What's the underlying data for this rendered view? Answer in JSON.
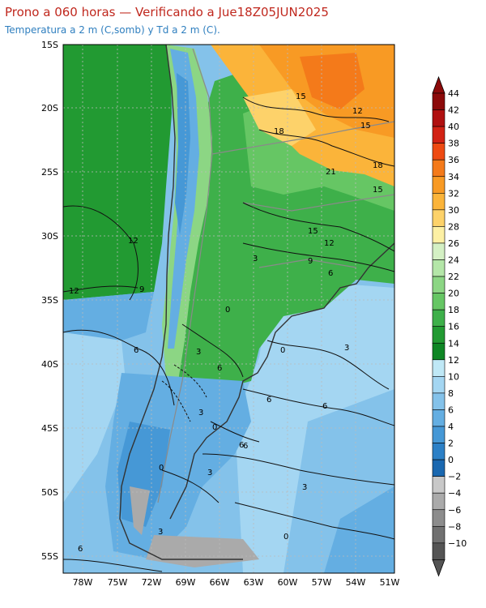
{
  "titles": {
    "main": "Prono a 060 horas — Verificando a Jue18Z05JUN2025",
    "sub": "Temperatura a 2 m (C,somb) y Td a 2 m (C)."
  },
  "axes": {
    "lat_labels": [
      "15S",
      "20S",
      "25S",
      "30S",
      "35S",
      "40S",
      "45S",
      "50S",
      "55S"
    ],
    "lon_labels": [
      "78W",
      "75W",
      "72W",
      "69W",
      "66W",
      "63W",
      "60W",
      "57W",
      "54W",
      "51W"
    ]
  },
  "colorbar": {
    "levels": [
      "44",
      "42",
      "40",
      "38",
      "36",
      "34",
      "32",
      "30",
      "28",
      "26",
      "24",
      "22",
      "20",
      "18",
      "16",
      "14",
      "12",
      "10",
      "8",
      "6",
      "4",
      "2",
      "0",
      "−2",
      "−4",
      "−6",
      "−8",
      "−10"
    ],
    "colors": [
      "#8c0a0a",
      "#b01010",
      "#d22214",
      "#ee4a12",
      "#f47a1a",
      "#f89a24",
      "#fbb43a",
      "#fdd26a",
      "#fdf0a4",
      "#d4f0c4",
      "#b4e6a8",
      "#8cd684",
      "#66c664",
      "#3eb04a",
      "#229a32",
      "#0e8624",
      "#bfe8f6",
      "#a4d6f2",
      "#84c2ea",
      "#64aee2",
      "#4698d6",
      "#2c80c6",
      "#1a68b0",
      "#c8c8c8",
      "#aaaaaa",
      "#8c8c8c",
      "#707070",
      "#545454"
    ]
  },
  "map_labels": {
    "contours": [
      "15",
      "12",
      "15",
      "18",
      "21",
      "18",
      "15",
      "12",
      "15",
      "12",
      "9",
      "6",
      "9",
      "6",
      "3",
      "12",
      "3",
      "0",
      "3",
      "0",
      "6",
      "6",
      "3",
      "6",
      "6",
      "0",
      "3",
      "6",
      "0",
      "3",
      "3",
      "0",
      "6"
    ]
  }
}
